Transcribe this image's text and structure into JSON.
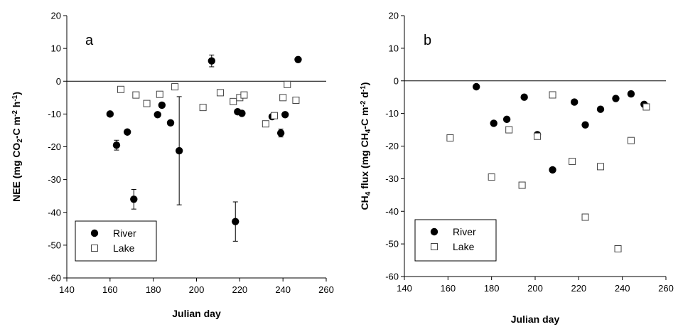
{
  "chart_data": [
    {
      "type": "scatter",
      "panel_label": "a",
      "xlabel": "Julian day",
      "ylabel": "NEE (mg CO₂-C m⁻² h⁻¹)",
      "ylabel_parts": [
        "NEE (mg CO",
        "2",
        "-C m",
        "-2",
        " h",
        "-1",
        ")"
      ],
      "xlim": [
        140,
        260
      ],
      "ylim": [
        -60,
        20
      ],
      "xticks": [
        140,
        160,
        180,
        200,
        220,
        240,
        260
      ],
      "yticks": [
        20,
        10,
        0,
        -10,
        -20,
        -30,
        -40,
        -50,
        -60
      ],
      "zero_line": true,
      "legend_position": "bottom-left",
      "series": [
        {
          "name": "River",
          "marker": "filled-circle",
          "points": [
            {
              "x": 160,
              "y": -10
            },
            {
              "x": 163,
              "y": -19.5,
              "err": 1.5
            },
            {
              "x": 168,
              "y": -15.5
            },
            {
              "x": 171,
              "y": -36,
              "err": 3
            },
            {
              "x": 182,
              "y": -10.2
            },
            {
              "x": 184,
              "y": -7.3
            },
            {
              "x": 188,
              "y": -12.7
            },
            {
              "x": 192,
              "y": -21.2,
              "err": 16.5
            },
            {
              "x": 207,
              "y": 6.2,
              "err": 1.8
            },
            {
              "x": 218,
              "y": -42.8,
              "err": 6
            },
            {
              "x": 219,
              "y": -9.3
            },
            {
              "x": 221,
              "y": -9.8
            },
            {
              "x": 235,
              "y": -10.8
            },
            {
              "x": 239,
              "y": -15.8,
              "err": 1.2
            },
            {
              "x": 241,
              "y": -10.2
            },
            {
              "x": 247,
              "y": 6.6
            }
          ]
        },
        {
          "name": "Lake",
          "marker": "open-square",
          "points": [
            {
              "x": 165,
              "y": -2.5
            },
            {
              "x": 172,
              "y": -4.2
            },
            {
              "x": 177,
              "y": -6.8
            },
            {
              "x": 183,
              "y": -4
            },
            {
              "x": 190,
              "y": -1.7
            },
            {
              "x": 203,
              "y": -8
            },
            {
              "x": 211,
              "y": -3.5
            },
            {
              "x": 217,
              "y": -6.2
            },
            {
              "x": 220,
              "y": -5
            },
            {
              "x": 222,
              "y": -4.2
            },
            {
              "x": 232,
              "y": -13
            },
            {
              "x": 236,
              "y": -10.5
            },
            {
              "x": 240,
              "y": -5
            },
            {
              "x": 242,
              "y": -1
            },
            {
              "x": 246,
              "y": -5.8
            }
          ]
        }
      ]
    },
    {
      "type": "scatter",
      "panel_label": "b",
      "xlabel": "Julian day",
      "ylabel": "CH₄ flux (mg CH₄-C m⁻² d⁻¹)",
      "ylabel_parts": [
        "CH",
        "4",
        " flux (mg CH",
        "4",
        "-C m",
        "-2",
        " d",
        "-1",
        ")"
      ],
      "xlim": [
        140,
        260
      ],
      "ylim": [
        -60,
        20
      ],
      "xticks": [
        140,
        160,
        180,
        200,
        220,
        240,
        260
      ],
      "yticks": [
        20,
        10,
        0,
        -10,
        -20,
        -30,
        -40,
        -50,
        -60
      ],
      "zero_line": true,
      "legend_position": "bottom-left",
      "series": [
        {
          "name": "River",
          "marker": "filled-circle",
          "points": [
            {
              "x": 173,
              "y": -1.8
            },
            {
              "x": 181,
              "y": -13
            },
            {
              "x": 187,
              "y": -11.8
            },
            {
              "x": 195,
              "y": -5
            },
            {
              "x": 201,
              "y": -16.5
            },
            {
              "x": 208,
              "y": -27.3
            },
            {
              "x": 218,
              "y": -6.5
            },
            {
              "x": 223,
              "y": -13.5
            },
            {
              "x": 230,
              "y": -8.7
            },
            {
              "x": 237,
              "y": -5.4
            },
            {
              "x": 244,
              "y": -4
            },
            {
              "x": 250,
              "y": -7.2
            }
          ]
        },
        {
          "name": "Lake",
          "marker": "open-square",
          "points": [
            {
              "x": 161,
              "y": -17.5
            },
            {
              "x": 180,
              "y": -29.5
            },
            {
              "x": 188,
              "y": -15
            },
            {
              "x": 194,
              "y": -32
            },
            {
              "x": 201,
              "y": -17
            },
            {
              "x": 208,
              "y": -4.3
            },
            {
              "x": 217,
              "y": -24.7
            },
            {
              "x": 223,
              "y": -41.8
            },
            {
              "x": 230,
              "y": -26.3
            },
            {
              "x": 238,
              "y": -51.5
            },
            {
              "x": 244,
              "y": -18.3
            },
            {
              "x": 251,
              "y": -8
            }
          ]
        }
      ]
    }
  ]
}
